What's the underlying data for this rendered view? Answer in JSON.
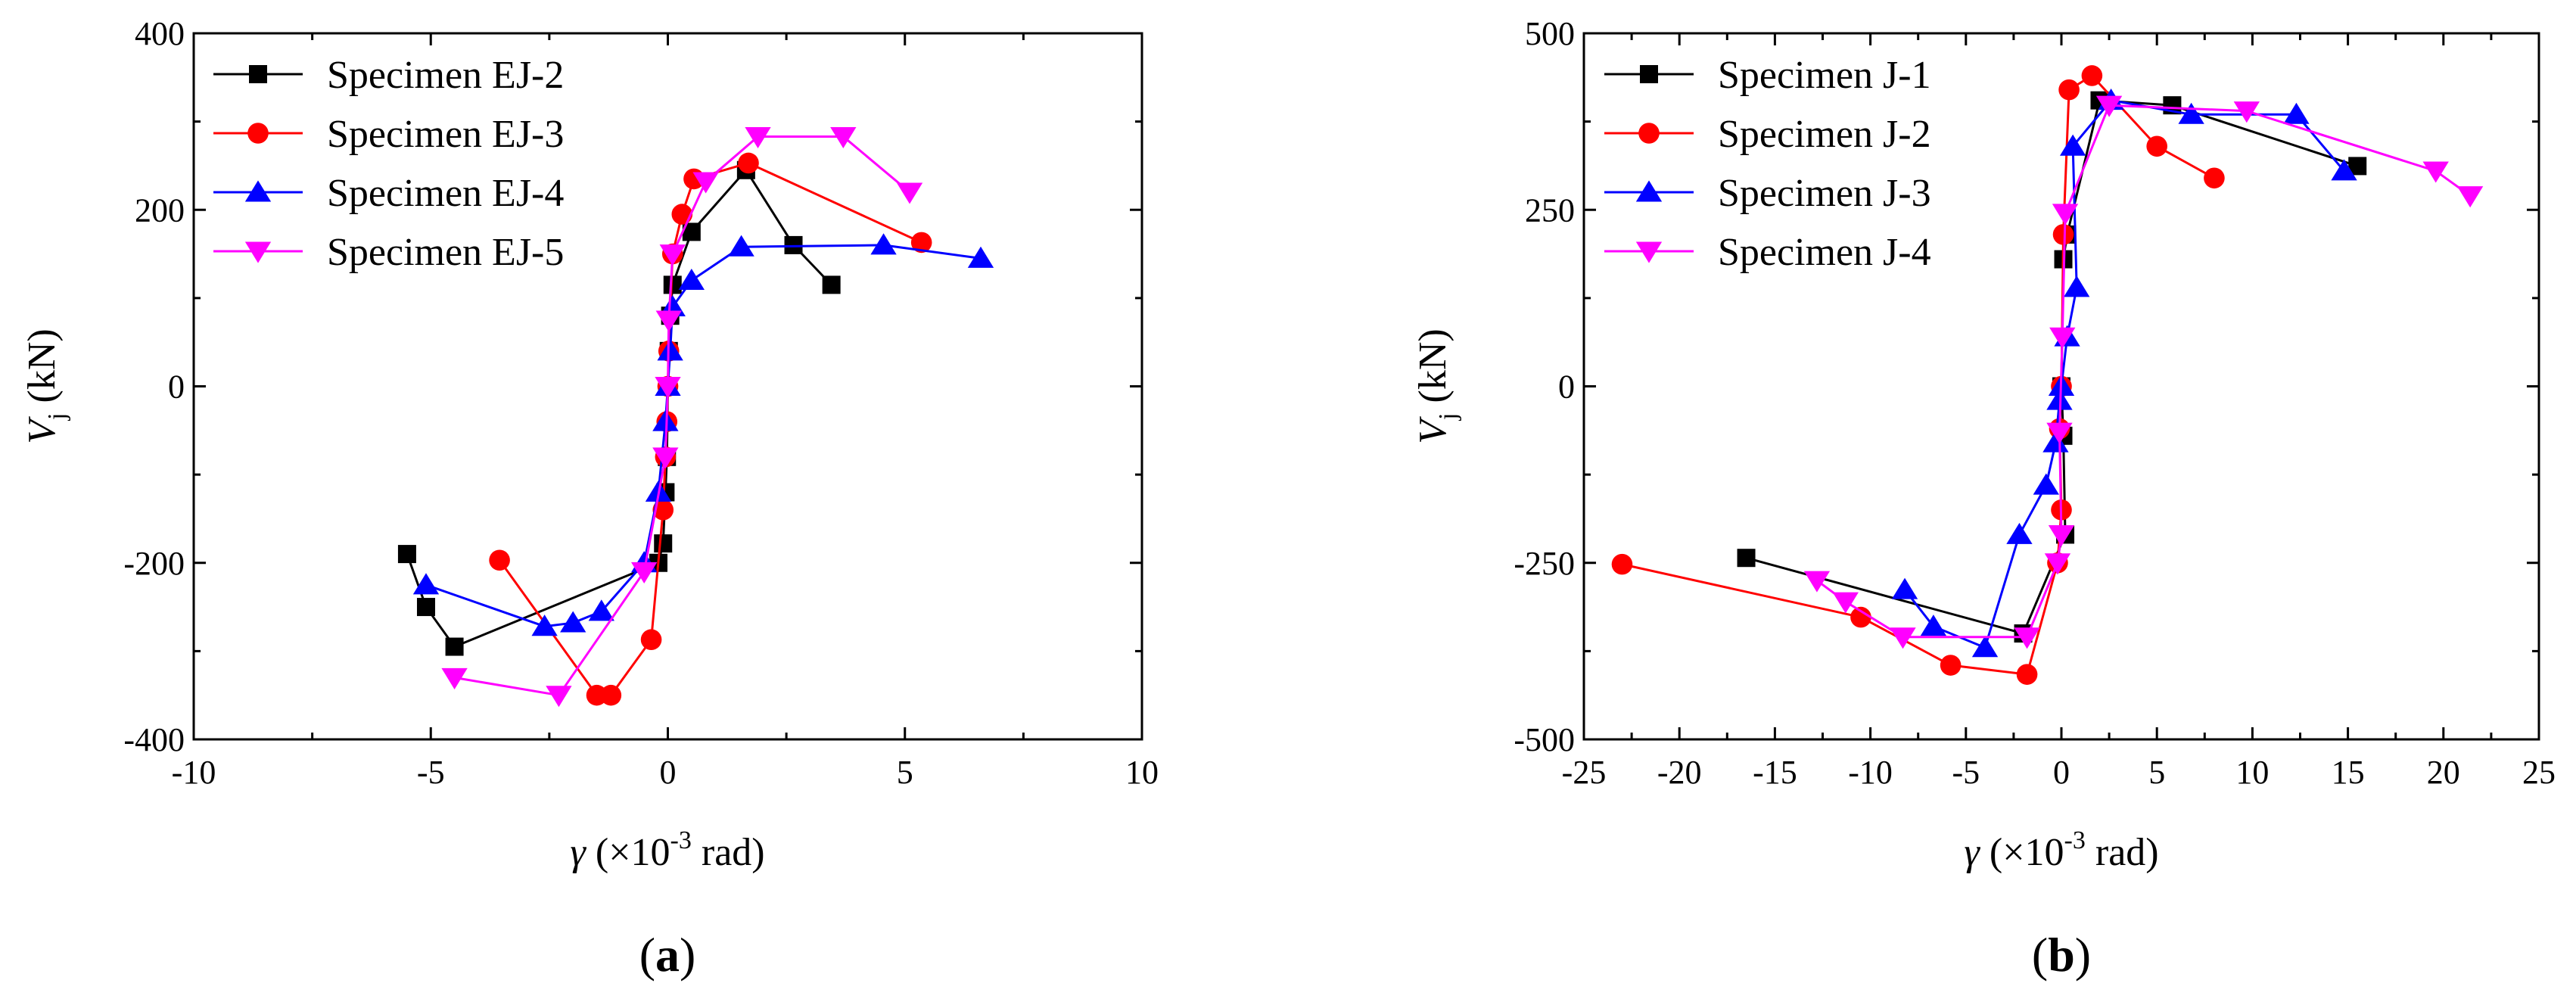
{
  "chart_data": [
    {
      "type": "line",
      "panel_label": "(a)",
      "panel_letter": "a",
      "xlabel": {
        "symbol": "γ",
        "prefix": " (×10",
        "sup": "-3",
        "suffix": " rad)"
      },
      "ylabel": {
        "symbol": "V",
        "sub": "j",
        "suffix": " (kN)"
      },
      "xlim": [
        -10,
        10
      ],
      "ylim": [
        -400,
        400
      ],
      "xticks": [
        -10,
        -5,
        0,
        5,
        10
      ],
      "yticks": [
        -400,
        -200,
        0,
        200,
        400
      ],
      "legend_position": "top-left",
      "series": [
        {
          "name": "Specimen EJ-2",
          "color": "#000000",
          "marker": "square",
          "x": [
            -5.5,
            -5.1,
            -4.5,
            -0.2,
            -0.1,
            -0.05,
            -0.02,
            0,
            0.02,
            0.05,
            0.1,
            0.5,
            1.65,
            2.65,
            3.45
          ],
          "y": [
            -190,
            -250,
            -295,
            -200,
            -178,
            -120,
            -80,
            0,
            40,
            80,
            115,
            175,
            245,
            160,
            115
          ]
        },
        {
          "name": "Specimen EJ-3",
          "color": "#ff0000",
          "marker": "circle",
          "x": [
            -3.55,
            -1.5,
            -1.2,
            -0.35,
            -0.1,
            -0.05,
            -0.02,
            0,
            0.02,
            0.1,
            0.3,
            0.55,
            1.7,
            5.35
          ],
          "y": [
            -197,
            -350,
            -350,
            -287,
            -140,
            -80,
            -40,
            0,
            40,
            150,
            195,
            235,
            253,
            163
          ]
        },
        {
          "name": "Specimen EJ-4",
          "color": "#0000ff",
          "marker": "triangle-up",
          "x": [
            -5.1,
            -2.6,
            -2.0,
            -1.4,
            -0.5,
            -0.2,
            -0.05,
            0,
            0.05,
            0.1,
            0.5,
            1.55,
            4.55,
            6.6
          ],
          "y": [
            -225,
            -272,
            -268,
            -255,
            -200,
            -120,
            -40,
            0,
            40,
            90,
            120,
            158,
            160,
            145
          ]
        },
        {
          "name": "Specimen EJ-5",
          "color": "#ff00ff",
          "marker": "triangle-down",
          "x": [
            -4.5,
            -2.3,
            -0.5,
            -0.05,
            0,
            0.02,
            0.1,
            0.8,
            1.9,
            3.7,
            5.1
          ],
          "y": [
            -330,
            -350,
            -210,
            -80,
            0,
            75,
            150,
            232,
            283,
            283,
            220
          ]
        }
      ]
    },
    {
      "type": "line",
      "panel_label": "(b)",
      "panel_letter": "b",
      "xlabel": {
        "symbol": "γ",
        "prefix": " (×10",
        "sup": "-3",
        "suffix": " rad)"
      },
      "ylabel": {
        "symbol": "V",
        "sub": "j",
        "suffix": " (kN)"
      },
      "xlim": [
        -25,
        25
      ],
      "ylim": [
        -500,
        500
      ],
      "xticks": [
        -25,
        -20,
        -15,
        -10,
        -5,
        0,
        5,
        10,
        15,
        20,
        25
      ],
      "yticks": [
        -500,
        -250,
        0,
        250,
        500
      ],
      "legend_position": "top-left",
      "series": [
        {
          "name": "Specimen J-1",
          "color": "#000000",
          "marker": "square",
          "x": [
            -16.5,
            -2.0,
            0.2,
            0.1,
            0,
            0.1,
            0.3,
            2.0,
            5.8,
            15.5
          ],
          "y": [
            -243,
            -350,
            -210,
            -70,
            0,
            180,
            215,
            405,
            398,
            312
          ]
        },
        {
          "name": "Specimen J-2",
          "color": "#ff0000",
          "marker": "circle",
          "x": [
            -23,
            -10.5,
            -5.8,
            -1.8,
            -0.2,
            0,
            -0.1,
            0,
            0.1,
            0.4,
            1.6,
            5.0,
            8.0
          ],
          "y": [
            -252,
            -327,
            -395,
            -408,
            -250,
            -175,
            -60,
            0,
            215,
            420,
            440,
            340,
            295
          ]
        },
        {
          "name": "Specimen J-3",
          "color": "#0000ff",
          "marker": "triangle-up",
          "x": [
            -8.2,
            -6.7,
            -4.0,
            -2.2,
            -0.8,
            -0.3,
            -0.1,
            0,
            0.3,
            0.8,
            0.6,
            2.6,
            6.8,
            12.3,
            14.8
          ],
          "y": [
            -288,
            -340,
            -370,
            -210,
            -140,
            -80,
            -20,
            0,
            70,
            140,
            340,
            405,
            385,
            385,
            305
          ]
        },
        {
          "name": "Specimen J-4",
          "color": "#ff00ff",
          "marker": "triangle-down",
          "x": [
            -12.8,
            -11.3,
            -8.3,
            -1.8,
            -0.2,
            0,
            -0.1,
            0.05,
            0.2,
            2.5,
            9.7,
            19.6,
            21.4
          ],
          "y": [
            -275,
            -305,
            -355,
            -355,
            -250,
            -210,
            -65,
            70,
            245,
            398,
            390,
            305,
            270
          ]
        }
      ]
    }
  ]
}
